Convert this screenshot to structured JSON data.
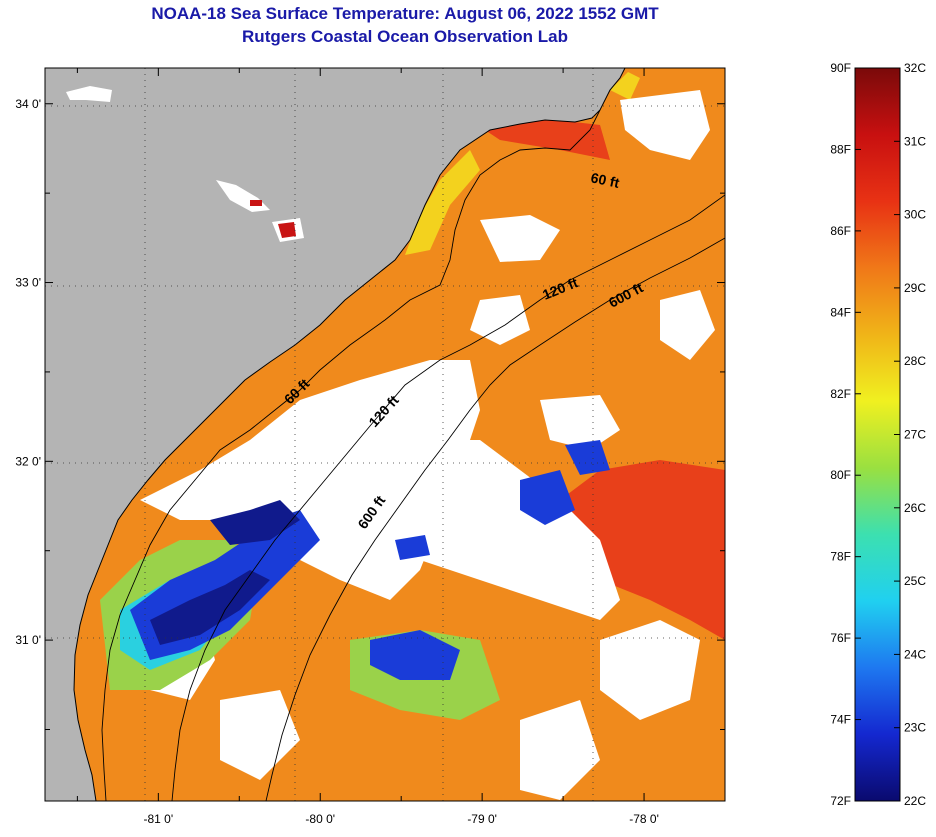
{
  "header": {
    "title": "NOAA-18 Sea Surface Temperature:  August 06, 2022 1552 GMT",
    "subtitle": "Rutgers Coastal Ocean Observation Lab"
  },
  "map": {
    "lat_range": [
      30.1,
      34.2
    ],
    "lon_range": [
      -81.7,
      -77.5
    ],
    "lat_ticks": [
      {
        "value": 34.0,
        "label": "34 0'"
      },
      {
        "value": 33.0,
        "label": "33 0'"
      },
      {
        "value": 32.0,
        "label": "32 0'"
      },
      {
        "value": 31.0,
        "label": "31 0'"
      }
    ],
    "lon_ticks": [
      {
        "value": -81.0,
        "label": "-81 0'"
      },
      {
        "value": -80.0,
        "label": "-80 0'"
      },
      {
        "value": -79.0,
        "label": "-79 0'"
      },
      {
        "value": -78.0,
        "label": "-78 0'"
      }
    ],
    "contours": [
      {
        "label": "60 ft"
      },
      {
        "label": "120 ft"
      },
      {
        "label": "600 ft"
      },
      {
        "label": "60 ft"
      },
      {
        "label": "120 ft"
      },
      {
        "label": "600 ft"
      }
    ],
    "colors": {
      "land": "#b4b4b4",
      "cloud": "#ffffff",
      "sst_warm": "#f08a1c",
      "sst_hot": "#e8401a",
      "sst_yellow": "#f3d21e",
      "sst_green": "#9ad24a",
      "sst_cyan": "#2ad0e0",
      "sst_blue": "#1a3cd8",
      "sst_navy": "#101a8c"
    }
  },
  "colorbar": {
    "fahrenheit": [
      "90F",
      "88F",
      "86F",
      "84F",
      "82F",
      "80F",
      "78F",
      "76F",
      "74F",
      "72F"
    ],
    "celsius": [
      "32C",
      "31C",
      "30C",
      "29C",
      "28C",
      "27C",
      "26C",
      "25C",
      "24C",
      "23C",
      "22C"
    ],
    "stops": [
      "#0a0a6e",
      "#1428d0",
      "#1e78f0",
      "#20d0f0",
      "#3ce0b0",
      "#9ae040",
      "#f0f020",
      "#f0b418",
      "#f07818",
      "#e83214",
      "#c81010",
      "#7a0a0a"
    ]
  }
}
